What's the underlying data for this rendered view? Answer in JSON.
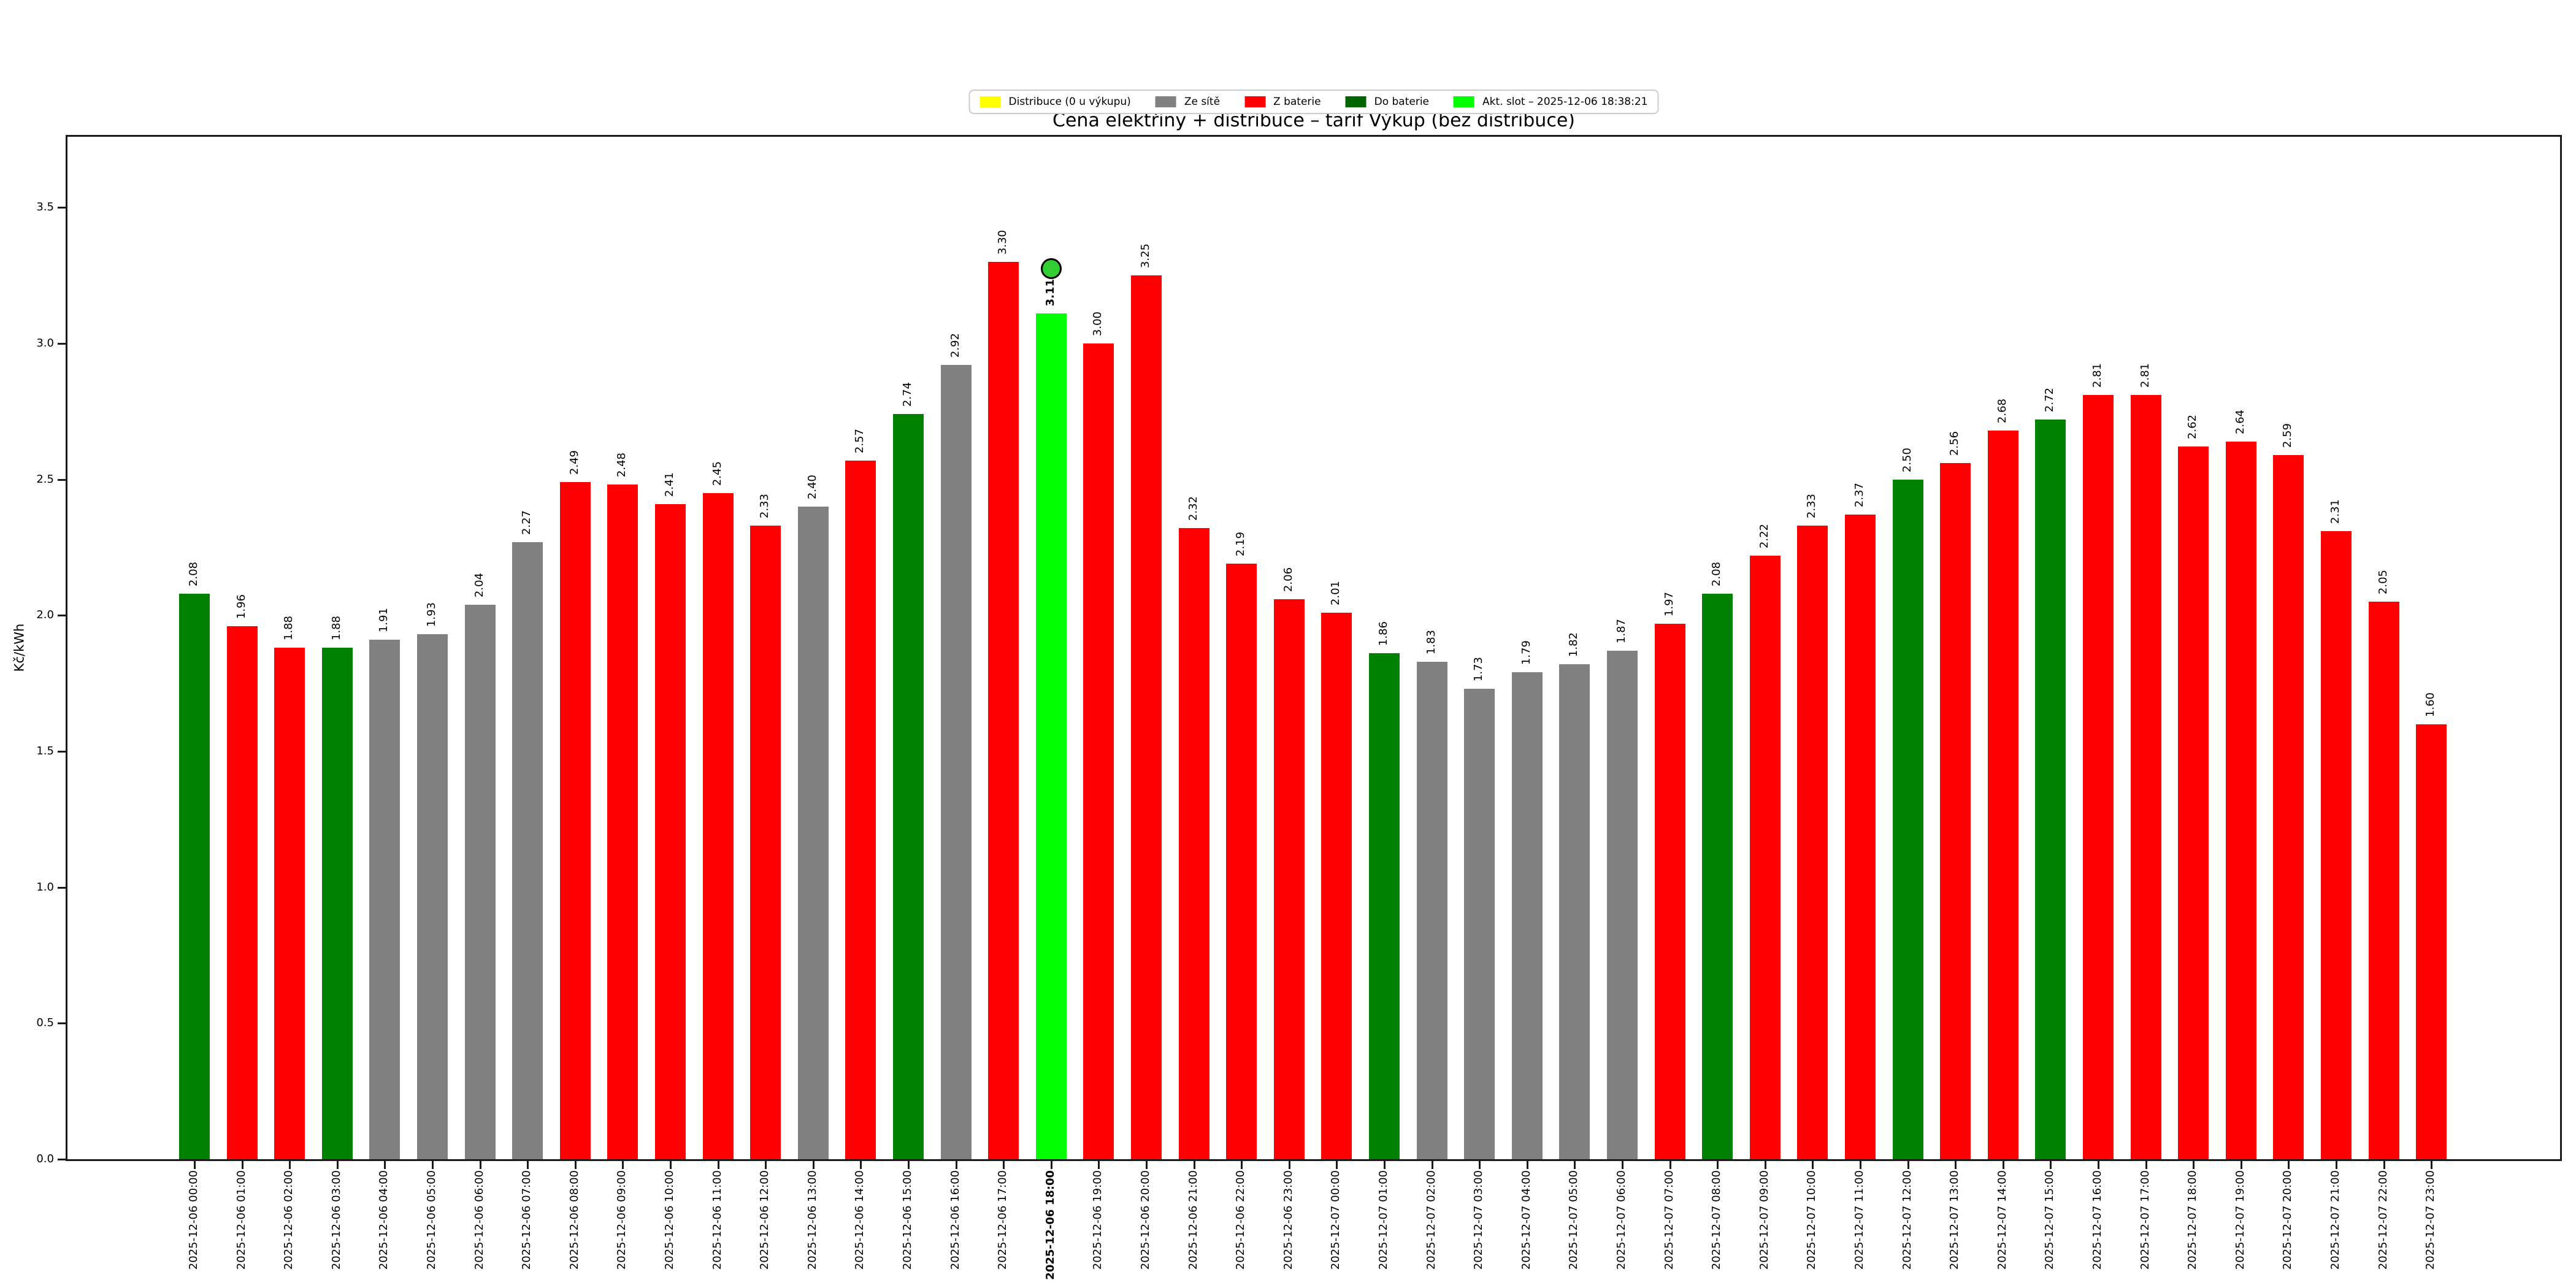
{
  "title": "Cena elektřiny + distribuce – tarif Výkup (bez distribuce)",
  "ylabel": "Kč/kWh",
  "legend": [
    {
      "name": "distribuce",
      "label": "Distribuce (0 u výkupu)",
      "color": "#ffff00"
    },
    {
      "name": "ze-site",
      "label": "Ze sítě",
      "color": "#808080"
    },
    {
      "name": "z-baterie",
      "label": "Z baterie",
      "color": "#ff0000"
    },
    {
      "name": "do-baterie",
      "label": "Do baterie",
      "color": "#006400"
    },
    {
      "name": "akt-slot",
      "label": "Akt. slot – 2025-12-06 18:38:21",
      "color": "#00ff00"
    }
  ],
  "active_slot": {
    "bar_index": 18,
    "category": "2025-12-06 18:00",
    "value": 3.11,
    "timestamp": "2025-12-06 18:38:21",
    "marker_color": "#32cd32"
  },
  "chart_data": {
    "type": "bar",
    "title": "Cena elektřiny + distribuce – tarif Výkup (bez distribuce)",
    "xlabel": "",
    "ylabel": "Kč/kWh",
    "ylim": [
      0,
      3.76
    ],
    "yticks": [
      0.0,
      0.5,
      1.0,
      1.5,
      2.0,
      2.5,
      3.0,
      3.5
    ],
    "grid": false,
    "legend_position": "top-center",
    "bar_value_labels": true,
    "categories": [
      "2025-12-06 00:00",
      "2025-12-06 01:00",
      "2025-12-06 02:00",
      "2025-12-06 03:00",
      "2025-12-06 04:00",
      "2025-12-06 05:00",
      "2025-12-06 06:00",
      "2025-12-06 07:00",
      "2025-12-06 08:00",
      "2025-12-06 09:00",
      "2025-12-06 10:00",
      "2025-12-06 11:00",
      "2025-12-06 12:00",
      "2025-12-06 13:00",
      "2025-12-06 14:00",
      "2025-12-06 15:00",
      "2025-12-06 16:00",
      "2025-12-06 17:00",
      "2025-12-06 18:00",
      "2025-12-06 19:00",
      "2025-12-06 20:00",
      "2025-12-06 21:00",
      "2025-12-06 22:00",
      "2025-12-06 23:00",
      "2025-12-07 00:00",
      "2025-12-07 01:00",
      "2025-12-07 02:00",
      "2025-12-07 03:00",
      "2025-12-07 04:00",
      "2025-12-07 05:00",
      "2025-12-07 06:00",
      "2025-12-07 07:00",
      "2025-12-07 08:00",
      "2025-12-07 09:00",
      "2025-12-07 10:00",
      "2025-12-07 11:00",
      "2025-12-07 12:00",
      "2025-12-07 13:00",
      "2025-12-07 14:00",
      "2025-12-07 15:00",
      "2025-12-07 16:00",
      "2025-12-07 17:00",
      "2025-12-07 18:00",
      "2025-12-07 19:00",
      "2025-12-07 20:00",
      "2025-12-07 21:00",
      "2025-12-07 22:00",
      "2025-12-07 23:00"
    ],
    "values": [
      2.08,
      1.96,
      1.88,
      1.88,
      1.91,
      1.93,
      2.04,
      2.27,
      2.49,
      2.48,
      2.41,
      2.45,
      2.33,
      2.4,
      2.57,
      2.74,
      2.92,
      3.3,
      3.11,
      3.0,
      3.25,
      2.32,
      2.19,
      2.06,
      2.01,
      1.86,
      1.83,
      1.73,
      1.79,
      1.82,
      1.87,
      1.97,
      2.08,
      2.22,
      2.33,
      2.37,
      2.5,
      2.56,
      2.68,
      2.72,
      2.81,
      2.81,
      2.62,
      2.64,
      2.59,
      2.31,
      2.05,
      1.6
    ],
    "bar_series": [
      "do_baterie",
      "z_baterie",
      "z_baterie",
      "do_baterie",
      "ze_site",
      "ze_site",
      "ze_site",
      "ze_site",
      "z_baterie",
      "z_baterie",
      "z_baterie",
      "z_baterie",
      "z_baterie",
      "ze_site",
      "z_baterie",
      "do_baterie",
      "ze_site",
      "z_baterie",
      "akt_slot",
      "z_baterie",
      "z_baterie",
      "z_baterie",
      "z_baterie",
      "z_baterie",
      "z_baterie",
      "do_baterie",
      "ze_site",
      "ze_site",
      "ze_site",
      "ze_site",
      "ze_site",
      "z_baterie",
      "do_baterie",
      "z_baterie",
      "z_baterie",
      "z_baterie",
      "do_baterie",
      "z_baterie",
      "z_baterie",
      "do_baterie",
      "z_baterie",
      "z_baterie",
      "z_baterie",
      "z_baterie",
      "z_baterie",
      "z_baterie",
      "z_baterie",
      "z_baterie"
    ],
    "series_colors": {
      "ze_site": "#808080",
      "z_baterie": "#ff0000",
      "do_baterie": "#008000",
      "akt_slot": "#00ff00"
    }
  }
}
